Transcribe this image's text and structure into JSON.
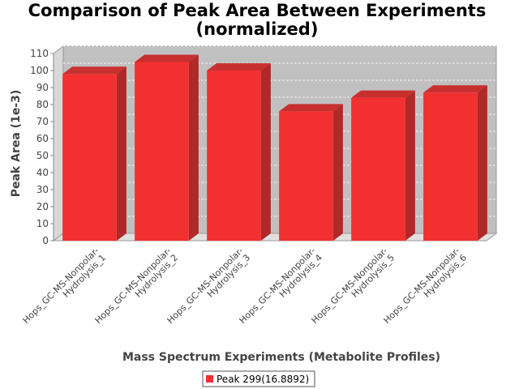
{
  "chart_data": {
    "type": "bar",
    "title_lines": [
      "Comparison of Peak Area Between Experiments",
      "(normalized)"
    ],
    "xlabel": "Mass Spectrum Experiments (Metabolite Profiles)",
    "ylabel": "Peak Area (1e-3)",
    "ylim": [
      0,
      110
    ],
    "yticks": [
      0,
      10,
      20,
      30,
      40,
      50,
      60,
      70,
      80,
      90,
      100,
      110
    ],
    "grid": true,
    "categories": [
      [
        "Hops_GC-MS-Nonpolar-",
        "Hydrolysis_1"
      ],
      [
        "Hops_GC-MS-Nonpolar-",
        "Hydrolysis_2"
      ],
      [
        "Hops_GC-MS-Nonpolar-",
        "Hydrolysis_3"
      ],
      [
        "Hops_GC-MS-Nonpolar-",
        "Hydrolysis_4"
      ],
      [
        "Hops_GC-MS-Nonpolar-",
        "Hydrolysis_5"
      ],
      [
        "Hops_GC-MS-Nonpolar-",
        "Hydrolysis_6"
      ]
    ],
    "series": [
      {
        "name": "Peak 299(16.8892)",
        "color": "#f23030",
        "values": [
          98,
          105,
          100,
          76,
          84,
          87
        ]
      }
    ],
    "legend_position": "bottom-center"
  }
}
